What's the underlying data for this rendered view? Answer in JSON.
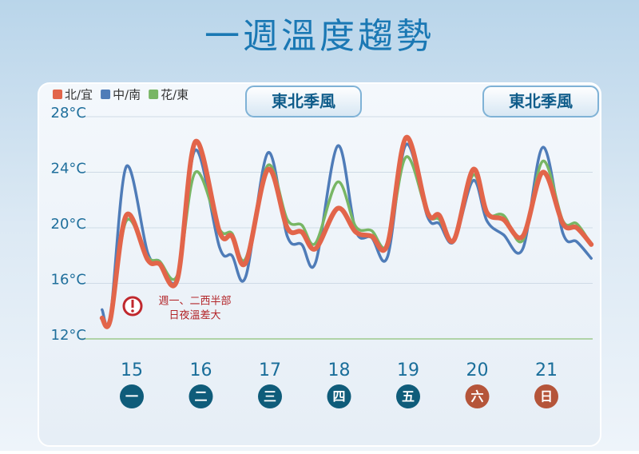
{
  "chart_data": {
    "type": "line",
    "title": "一週溫度趨勢",
    "x": [
      14.57,
      14.69,
      14.92,
      15.23,
      15.4,
      15.66,
      15.92,
      16.27,
      16.45,
      16.65,
      16.97,
      17.25,
      17.46,
      17.66,
      17.98,
      18.24,
      18.47,
      18.7,
      18.97,
      19.28,
      19.45,
      19.66,
      19.94,
      20.14,
      20.38,
      20.66,
      20.95,
      21.24,
      21.44,
      21.65
    ],
    "series": [
      {
        "name": "中/南",
        "color": "#4f7cb8",
        "values": [
          14.1,
          13.6,
          24.4,
          18.2,
          17.6,
          16.4,
          25.6,
          18.6,
          18.0,
          16.5,
          25.4,
          19.4,
          18.8,
          17.5,
          25.9,
          19.8,
          19.3,
          17.9,
          26.0,
          20.8,
          20.3,
          19.0,
          23.4,
          20.5,
          19.5,
          18.5,
          25.8,
          19.6,
          19.0,
          17.8
        ]
      },
      {
        "name": "花/東",
        "color": "#78b664",
        "values": [
          13.5,
          13.4,
          20.5,
          17.9,
          17.6,
          16.6,
          24.0,
          19.9,
          19.6,
          17.8,
          24.5,
          20.6,
          20.2,
          18.9,
          23.3,
          20.1,
          19.8,
          18.8,
          25.1,
          21.0,
          20.6,
          19.1,
          23.8,
          21.0,
          20.9,
          19.1,
          24.8,
          20.5,
          20.3,
          18.8
        ]
      },
      {
        "name": "北/宜",
        "color": "#e2654a",
        "values": [
          13.5,
          13.4,
          20.9,
          17.7,
          17.4,
          16.3,
          26.2,
          19.7,
          19.4,
          17.5,
          24.2,
          20.0,
          19.7,
          18.5,
          21.4,
          19.7,
          19.4,
          18.8,
          26.5,
          21.1,
          20.9,
          19.1,
          24.2,
          21.1,
          20.6,
          19.4,
          24.0,
          20.3,
          20.0,
          18.8
        ]
      }
    ],
    "legend_order": [
      2,
      0,
      1
    ],
    "xlim": [
      14.5,
      21.7
    ],
    "xticks": [
      15,
      16,
      17,
      18,
      19,
      20,
      21
    ],
    "weekdays": [
      "一",
      "二",
      "三",
      "四",
      "五",
      "六",
      "日"
    ],
    "weekday_colors": [
      "#0f5c7a",
      "#0f5c7a",
      "#0f5c7a",
      "#0f5c7a",
      "#0f5c7a",
      "#b5553a",
      "#b5553a"
    ],
    "ylim": [
      12,
      28
    ],
    "yticks": [
      {
        "value": 12,
        "label": "12°C"
      },
      {
        "value": 16,
        "label": "16°C"
      },
      {
        "value": 20,
        "label": "20°C"
      },
      {
        "value": 24,
        "label": "24°C"
      },
      {
        "value": 28,
        "label": "28°C"
      }
    ],
    "grid": true,
    "badges": [
      "東北季風",
      "東北季風"
    ],
    "note": [
      "週一、二西半部",
      "日夜溫差大"
    ]
  }
}
